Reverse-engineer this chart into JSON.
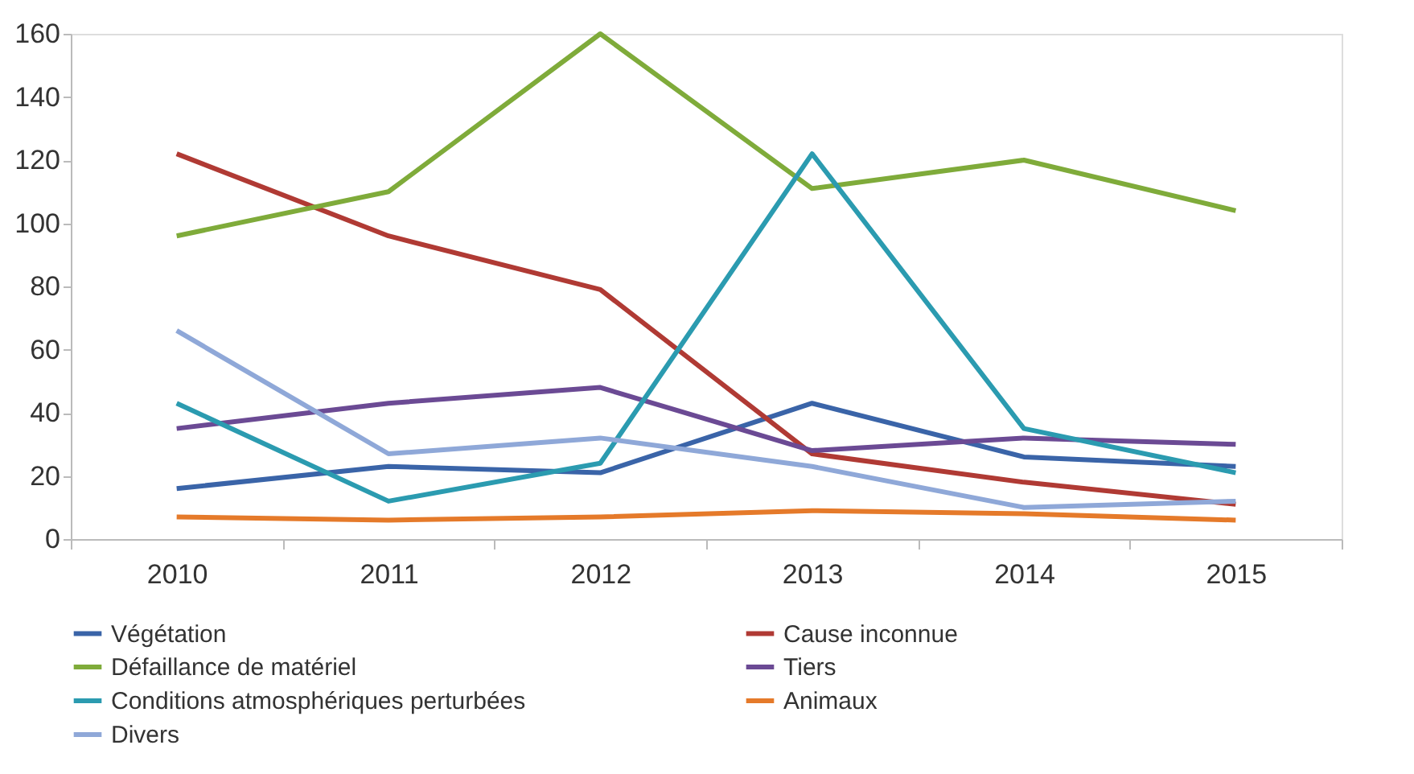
{
  "chart_data": {
    "type": "line",
    "categories": [
      "2010",
      "2011",
      "2012",
      "2013",
      "2014",
      "2015"
    ],
    "ylim": [
      0,
      160
    ],
    "yticks": [
      0,
      20,
      40,
      60,
      80,
      100,
      120,
      140,
      160
    ],
    "grid": false,
    "legend": "bottom",
    "marker": "none",
    "line_style": "solid",
    "series": [
      {
        "name": "Végétation",
        "color": "#3a64a8",
        "values": [
          16,
          23,
          21,
          43,
          26,
          23
        ]
      },
      {
        "name": "Cause inconnue",
        "color": "#b03a34",
        "values": [
          122,
          96,
          79,
          27,
          18,
          11
        ]
      },
      {
        "name": "Défaillance de matériel",
        "color": "#7fab3a",
        "values": [
          96,
          110,
          160,
          111,
          120,
          104
        ]
      },
      {
        "name": "Tiers",
        "color": "#6b4a94",
        "values": [
          35,
          43,
          48,
          28,
          32,
          30
        ]
      },
      {
        "name": "Conditions atmosphériques perturbées",
        "color": "#2b9bb0",
        "values": [
          43,
          12,
          24,
          122,
          35,
          21
        ]
      },
      {
        "name": "Animaux",
        "color": "#e57a2a",
        "values": [
          7,
          6,
          7,
          9,
          8,
          6
        ]
      },
      {
        "name": "Divers",
        "color": "#8fa8d8",
        "values": [
          66,
          27,
          32,
          23,
          10,
          12
        ]
      }
    ]
  }
}
